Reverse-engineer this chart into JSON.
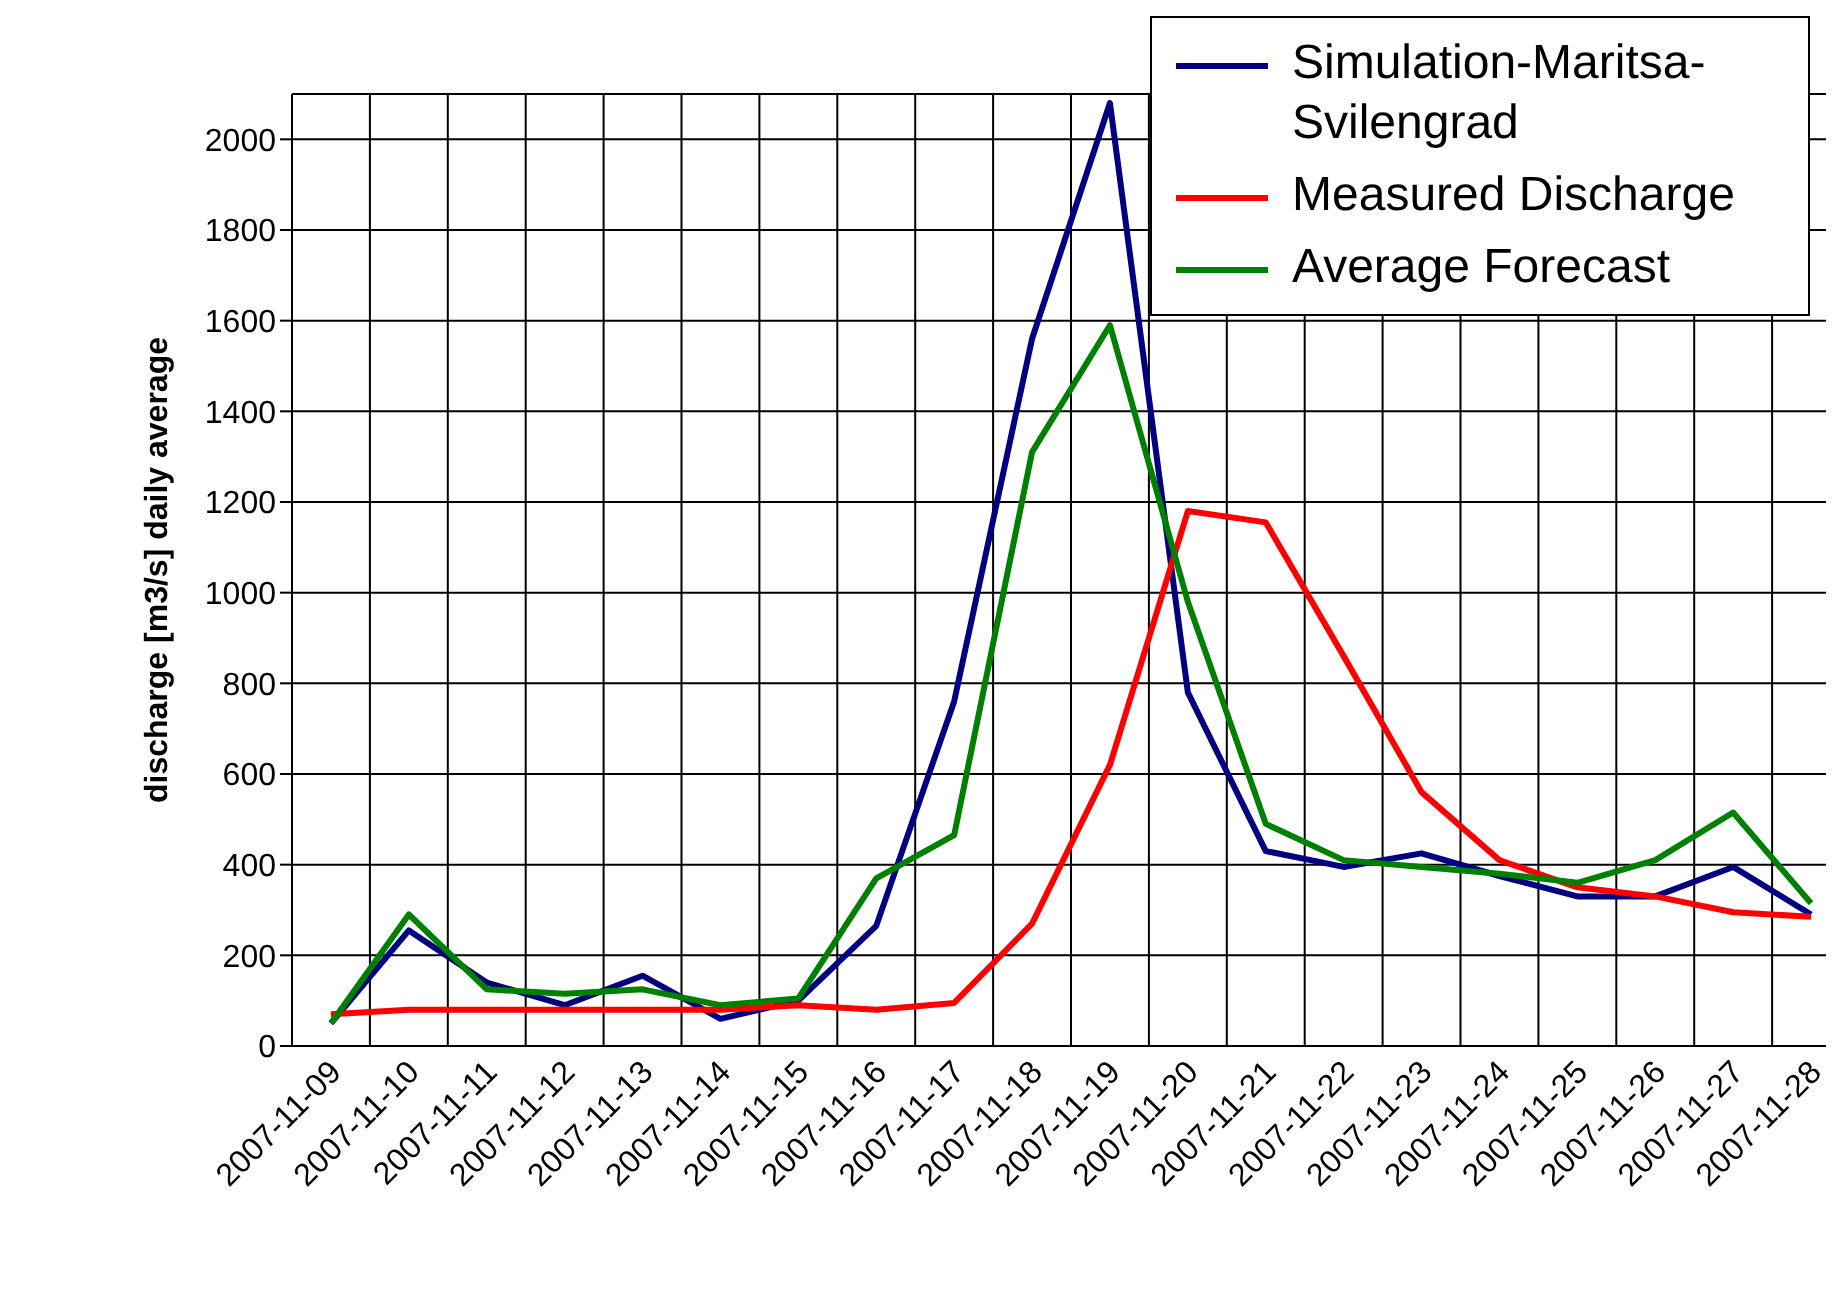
{
  "chart_data": {
    "type": "line",
    "ylabel": "discharge [m3/s] daily average",
    "categories": [
      "2007-11-09",
      "2007-11-10",
      "2007-11-11",
      "2007-11-12",
      "2007-11-13",
      "2007-11-14",
      "2007-11-15",
      "2007-11-16",
      "2007-11-17",
      "2007-11-18",
      "2007-11-19",
      "2007-11-20",
      "2007-11-21",
      "2007-11-22",
      "2007-11-23",
      "2007-11-24",
      "2007-11-25",
      "2007-11-26",
      "2007-11-27",
      "2007-11-28"
    ],
    "series": [
      {
        "name": "Simulation-Maritsa-Svilengrad",
        "color": "#000080",
        "values": [
          50,
          255,
          140,
          90,
          155,
          60,
          100,
          265,
          760,
          1560,
          2080,
          780,
          430,
          395,
          425,
          375,
          330,
          330,
          395,
          290
        ]
      },
      {
        "name": "Measured Discharge",
        "color": "#ff0000",
        "values": [
          70,
          80,
          80,
          80,
          80,
          80,
          90,
          80,
          95,
          270,
          620,
          1180,
          1155,
          860,
          560,
          410,
          350,
          330,
          295,
          285
        ]
      },
      {
        "name": "Average Forecast",
        "color": "#008000",
        "values": [
          50,
          290,
          125,
          115,
          125,
          90,
          105,
          370,
          465,
          1310,
          1590,
          980,
          490,
          410,
          395,
          380,
          360,
          410,
          515,
          315
        ]
      }
    ],
    "ylim": [
      0,
      2100
    ],
    "yticks": [
      0,
      200,
      400,
      600,
      800,
      1000,
      1200,
      1400,
      1600,
      1800,
      2000
    ],
    "grid": true,
    "legend": "top right",
    "marker": "none",
    "line_style": "solid"
  }
}
